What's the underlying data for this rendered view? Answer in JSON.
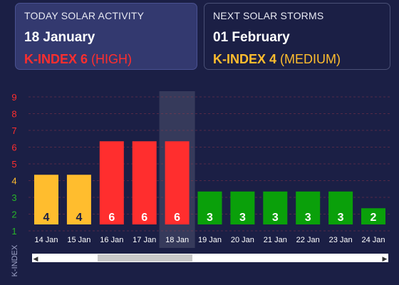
{
  "today": {
    "title": "TODAY SOLAR ACTIVITY",
    "date": "18 January",
    "k_label": "K-INDEX 6",
    "k_level": "(HIGH)",
    "color": "#ff2e2e"
  },
  "next": {
    "title": "NEXT SOLAR STORMS",
    "date": "01 February",
    "k_label": "K-INDEX 4",
    "k_level": "(MEDIUM)",
    "color": "#ffbd2e"
  },
  "chart_data": {
    "type": "bar",
    "ylabel": "K-INDEX",
    "ylim": [
      1,
      9
    ],
    "y_ticks": [
      {
        "v": 9,
        "label": "9",
        "color": "#ff2e2e"
      },
      {
        "v": 8,
        "label": "8",
        "color": "#ff2e2e"
      },
      {
        "v": 7,
        "label": "7",
        "color": "#ff2e2e"
      },
      {
        "v": 6,
        "label": "6",
        "color": "#ff2e2e"
      },
      {
        "v": 5,
        "label": "5",
        "color": "#ff2e2e"
      },
      {
        "v": 4,
        "label": "4",
        "color": "#ffbd2e"
      },
      {
        "v": 3,
        "label": "3",
        "color": "#28b628"
      },
      {
        "v": 2,
        "label": "2",
        "color": "#28b628"
      },
      {
        "v": 1,
        "label": "1",
        "color": "#28b628"
      }
    ],
    "categories": [
      "14 Jan",
      "15 Jan",
      "16 Jan",
      "17 Jan",
      "18 Jan",
      "19 Jan",
      "20 Jan",
      "21 Jan",
      "22 Jan",
      "23 Jan",
      "24 Jan"
    ],
    "values": [
      4,
      4,
      6,
      6,
      6,
      3,
      3,
      3,
      3,
      3,
      2
    ],
    "value_labels": [
      "4",
      "4",
      "6",
      "6",
      "6",
      "3",
      "3",
      "3",
      "3",
      "3",
      "2"
    ],
    "highlight_category": "18 Jan",
    "colors": {
      "high": "#ff2e2e",
      "medium": "#ffbd2e",
      "low": "#0aa00a"
    },
    "grid": true,
    "scrollbar": {
      "left_arrow": "◀",
      "right_arrow": "▶"
    }
  }
}
